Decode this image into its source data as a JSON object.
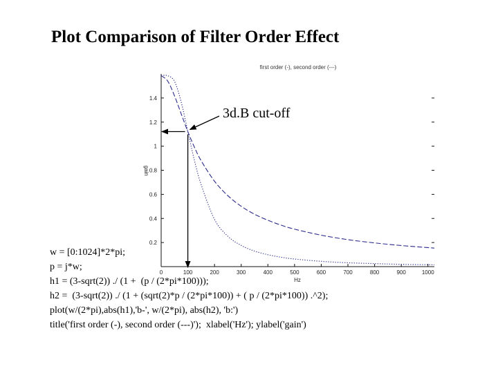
{
  "slide": {
    "title": "Plot Comparison of Filter Order Effect"
  },
  "annotation": {
    "label": "3d.B cut-off"
  },
  "code_lines": [
    "w = [0:1024]*2*pi;",
    "p = j*w;",
    "h1 = (3-sqrt(2)) ./ (1 +  (p / (2*pi*100)));",
    "h2 =  (3-sqrt(2)) ./ (1 + (sqrt(2)*p / (2*pi*100)) + ( p / (2*pi*100)) .^2);",
    "plot(w/(2*pi),abs(h1),'b-', w/(2*pi), abs(h2), 'b:')",
    "title('first order (-), second order (---)');  xlabel('Hz'); ylabel('gain')"
  ],
  "chart_data": {
    "type": "line",
    "title": "first order (-), second order (---)",
    "xlabel": "Hz",
    "ylabel": "gain",
    "xlim": [
      0,
      1024
    ],
    "ylim": [
      0,
      1.6
    ],
    "xticks": [
      0,
      100,
      200,
      300,
      400,
      500,
      600,
      700,
      800,
      900,
      1000
    ],
    "xtick_labels": [
      "0",
      "100",
      "200",
      "300",
      "400",
      "500",
      "600",
      "700",
      "800",
      "900",
      "1000"
    ],
    "yticks": [
      0.2,
      0.4,
      0.6,
      0.8,
      1.0,
      1.2,
      1.4
    ],
    "ytick_labels": [
      "0.2",
      "0.4",
      "0.6",
      "0.8",
      "1",
      "1.2",
      "1.4"
    ],
    "grid": false,
    "series": [
      {
        "style": "dashed",
        "color": "#2a2a8a",
        "x": [
          0,
          25,
          50,
          75,
          100,
          125,
          150,
          200,
          250,
          300,
          350,
          400,
          450,
          500,
          600,
          700,
          800,
          900,
          1024
        ],
        "y": [
          1.586,
          1.539,
          1.418,
          1.269,
          1.121,
          0.99,
          0.879,
          0.709,
          0.589,
          0.501,
          0.435,
          0.385,
          0.344,
          0.311,
          0.261,
          0.224,
          0.197,
          0.175,
          0.154
        ]
      },
      {
        "style": "dotted",
        "color": "#2a2a8a",
        "x": [
          0,
          25,
          50,
          75,
          100,
          125,
          150,
          200,
          250,
          300,
          350,
          400,
          450,
          500,
          600,
          700,
          800,
          900,
          1024
        ],
        "y": [
          1.586,
          1.585,
          1.538,
          1.368,
          1.121,
          0.879,
          0.68,
          0.392,
          0.252,
          0.176,
          0.129,
          0.099,
          0.078,
          0.063,
          0.044,
          0.032,
          0.025,
          0.019,
          0.015
        ]
      }
    ],
    "cutoff": {
      "x": 100,
      "y": 1.121
    }
  }
}
